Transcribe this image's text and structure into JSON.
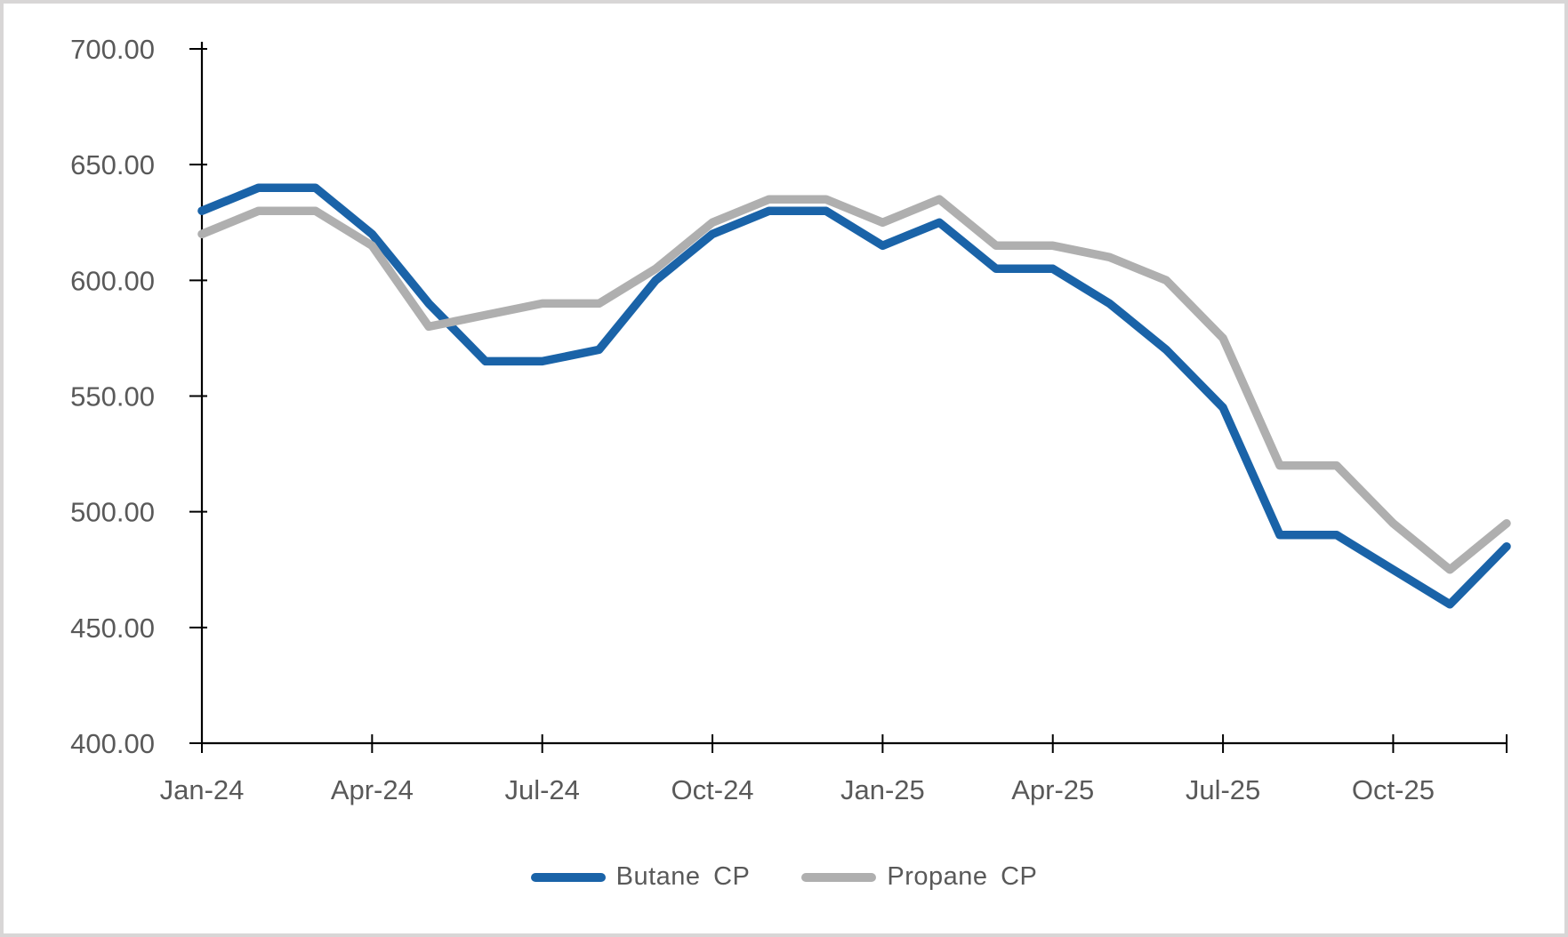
{
  "chart_data": {
    "type": "line",
    "title": "",
    "categories": [
      "Jan-24",
      "Feb-24",
      "Mar-24",
      "Apr-24",
      "May-24",
      "Jun-24",
      "Jul-24",
      "Aug-24",
      "Sep-24",
      "Oct-24",
      "Nov-24",
      "Dec-24",
      "Jan-25",
      "Feb-25",
      "Mar-25",
      "Apr-25",
      "May-25",
      "Jun-25",
      "Jul-25",
      "Aug-25",
      "Sep-25",
      "Oct-25",
      "Nov-25",
      "Dec-25"
    ],
    "series": [
      {
        "name": "Butane CP",
        "color": "#1a63a8",
        "values": [
          630,
          640,
          640,
          620,
          590,
          565,
          565,
          570,
          600,
          620,
          630,
          630,
          615,
          625,
          605,
          605,
          590,
          570,
          545,
          490,
          490,
          475,
          460,
          485
        ]
      },
      {
        "name": "Propane CP",
        "color": "#afafaf",
        "values": [
          620,
          630,
          630,
          615,
          580,
          585,
          590,
          590,
          605,
          625,
          635,
          635,
          625,
          635,
          615,
          615,
          610,
          600,
          575,
          520,
          520,
          495,
          475,
          495
        ]
      }
    ],
    "y_axis": {
      "min": 400,
      "max": 700,
      "step": 50,
      "tick_labels": [
        "700.00",
        "650.00",
        "600.00",
        "550.00",
        "500.00",
        "450.00",
        "400.00"
      ]
    },
    "x_axis": {
      "label_every": 3,
      "tick_labels": [
        "Jan-24",
        "Apr-24",
        "Jul-24",
        "Oct-24",
        "Jan-25",
        "Apr-25",
        "Jul-25",
        "Oct-25"
      ]
    },
    "legend_position": "bottom",
    "grid": false,
    "ylim": [
      400,
      700
    ]
  },
  "styles": {
    "axis_color": "#000000",
    "label_color": "#595959",
    "frame_border_color": "#d8d6d6",
    "background": "#ffffff"
  }
}
